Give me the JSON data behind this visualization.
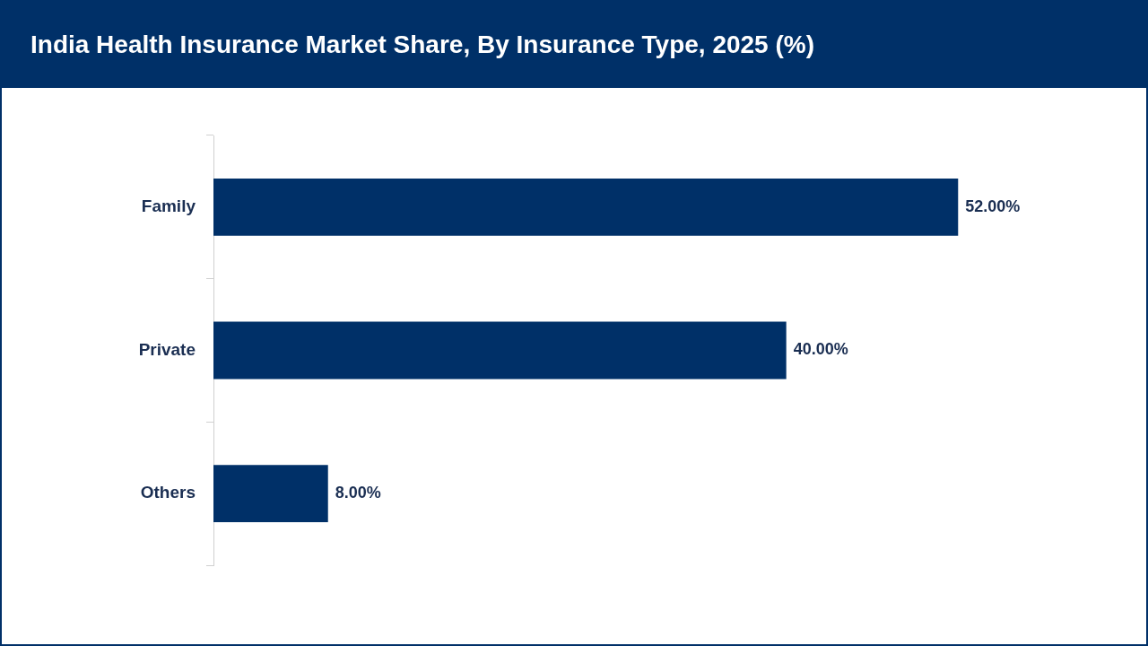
{
  "chart_data": {
    "type": "bar",
    "title": "India Health Insurance Market Share, By Insurance Type, 2025 (%)",
    "orientation": "horizontal",
    "categories": [
      "Family",
      "Private",
      "Others"
    ],
    "values": [
      52,
      40,
      8
    ],
    "value_labels": [
      "52.00%",
      "40.00%",
      "8.00%"
    ],
    "color": "#003068",
    "legend": false
  }
}
